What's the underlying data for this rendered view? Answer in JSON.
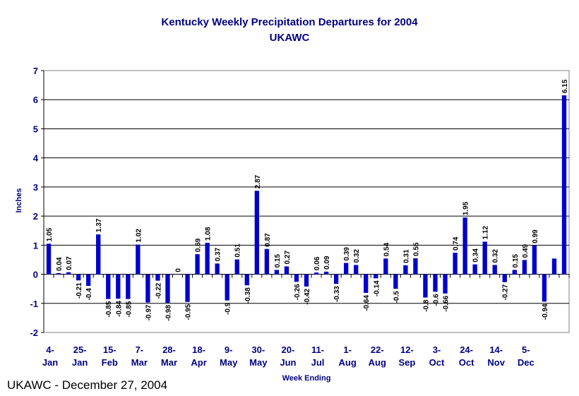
{
  "chart_data": {
    "type": "bar",
    "title": "Kentucky Weekly Precipitation Departures for 2004",
    "subtitle": "UKAWC",
    "xlabel": "Week Ending",
    "ylabel": "Inches",
    "ylim": [
      -2,
      7
    ],
    "yticks": [
      "-2",
      "-1",
      "0",
      "1",
      "2",
      "3",
      "4",
      "5",
      "6",
      "7"
    ],
    "grid": true,
    "legend": "none",
    "bar_color": "#0000CC",
    "values": [
      1.05,
      0.04,
      0.07,
      -0.21,
      -0.4,
      1.37,
      -0.85,
      -0.84,
      -0.85,
      1.02,
      -0.97,
      -0.22,
      -0.98,
      0,
      -0.95,
      0.69,
      1.08,
      0.37,
      -0.9,
      0.51,
      -0.38,
      2.87,
      0.87,
      0.15,
      0.27,
      -0.26,
      -0.42,
      0.06,
      0.09,
      -0.33,
      0.39,
      0.32,
      -0.64,
      -0.14,
      0.54,
      -0.5,
      0.31,
      0.55,
      -0.8,
      -0.6,
      -0.66,
      0.74,
      1.95,
      0.34,
      1.12,
      0.32,
      -0.27,
      0.15,
      0.49,
      0.99,
      -0.94,
      0.54,
      6.15
    ],
    "data_labels": [
      "1.05",
      "0.04",
      "0.07",
      "-0.21",
      "-0.4",
      "1.37",
      "-0.85",
      "-0.84",
      "-0.85",
      "1.02",
      "-0.97",
      "-0.22",
      "-0.98",
      "0",
      "-0.95",
      "0.69",
      "1.08",
      "0.37",
      "-0.9",
      "0.51",
      "-0.38",
      "2.87",
      "0.87",
      "0.15",
      "0.27",
      "-0.26",
      "-0.42",
      "0.06",
      "0.09",
      "-0.33",
      "0.39",
      "0.32",
      "-0.64",
      "-0.14",
      "0.54",
      "-0.5",
      "0.31",
      "0.55",
      "-0.8",
      "-0.6",
      "-0.66",
      "0.74",
      "1.95",
      "0.34",
      "1.12",
      "0.32",
      "-0.27",
      "0.15",
      "0.49",
      "0.99",
      "-0.94",
      "",
      "6.15"
    ],
    "x_tick_labels": [
      {
        "index": 0,
        "line1": "4-",
        "line2": "Jan"
      },
      {
        "index": 3,
        "line1": "25-",
        "line2": "Jan"
      },
      {
        "index": 6,
        "line1": "15-",
        "line2": "Feb"
      },
      {
        "index": 9,
        "line1": "7-",
        "line2": "Mar"
      },
      {
        "index": 12,
        "line1": "28-",
        "line2": "Mar"
      },
      {
        "index": 15,
        "line1": "18-",
        "line2": "Apr"
      },
      {
        "index": 18,
        "line1": "9-",
        "line2": "May"
      },
      {
        "index": 21,
        "line1": "30-",
        "line2": "May"
      },
      {
        "index": 24,
        "line1": "20-",
        "line2": "Jun"
      },
      {
        "index": 27,
        "line1": "11-",
        "line2": "Jul"
      },
      {
        "index": 30,
        "line1": "1-",
        "line2": "Aug"
      },
      {
        "index": 33,
        "line1": "22-",
        "line2": "Aug"
      },
      {
        "index": 36,
        "line1": "12-",
        "line2": "Sep"
      },
      {
        "index": 39,
        "line1": "3-",
        "line2": "Oct"
      },
      {
        "index": 42,
        "line1": "24-",
        "line2": "Oct"
      },
      {
        "index": 45,
        "line1": "14-",
        "line2": "Nov"
      },
      {
        "index": 48,
        "line1": "5-",
        "line2": "Dec"
      }
    ]
  },
  "footer": "UKAWC - December 27, 2004"
}
